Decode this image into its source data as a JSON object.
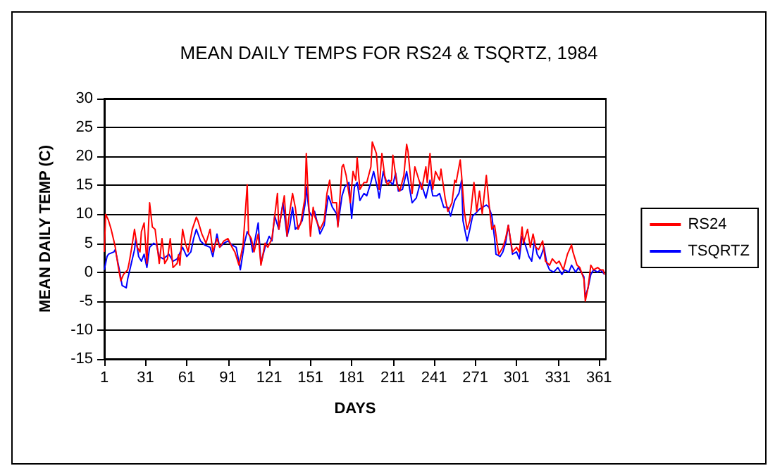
{
  "chart_data": {
    "type": "line",
    "title": "MEAN DAILY TEMPS FOR RS24 & TSQRTZ, 1984",
    "xlabel": "DAYS",
    "ylabel": "MEAN DAILY TEMP (C)",
    "xlim": [
      1,
      366
    ],
    "xticks": [
      1,
      31,
      61,
      91,
      121,
      151,
      181,
      211,
      241,
      271,
      301,
      331,
      361
    ],
    "ylim": [
      -15,
      30
    ],
    "yticks": [
      -15,
      -10,
      -5,
      0,
      5,
      10,
      15,
      20,
      25,
      30
    ],
    "grid": "y",
    "legend": "right",
    "marker": "none",
    "line_style": "solid",
    "series": [
      {
        "name": "RS24",
        "color": "#ff0000",
        "x": [
          1,
          2,
          4,
          6,
          8,
          9,
          11,
          13,
          15,
          18,
          19,
          21,
          23,
          25,
          27,
          28,
          30,
          32,
          33,
          34,
          36,
          38,
          41,
          43,
          45,
          47,
          49,
          51,
          54,
          55,
          56,
          58,
          60,
          62,
          65,
          68,
          69,
          72,
          75,
          78,
          80,
          83,
          85,
          88,
          91,
          94,
          96,
          99,
          102,
          104,
          105,
          106,
          108,
          110,
          113,
          115,
          118,
          120,
          123,
          125,
          127,
          128,
          132,
          134,
          135,
          138,
          140,
          142,
          144,
          147,
          148,
          149,
          151,
          153,
          154,
          158,
          161,
          163,
          165,
          167,
          170,
          171,
          174,
          175,
          177,
          180,
          182,
          184,
          185,
          187,
          190,
          192,
          195,
          196,
          199,
          201,
          203,
          205,
          207,
          210,
          211,
          214,
          216,
          219,
          221,
          222,
          225,
          227,
          230,
          232,
          235,
          236,
          238,
          240,
          242,
          245,
          246,
          249,
          251,
          254,
          256,
          257,
          260,
          261,
          263,
          265,
          267,
          270,
          272,
          274,
          276,
          279,
          281,
          283,
          285,
          288,
          291,
          293,
          295,
          298,
          301,
          303,
          305,
          306,
          309,
          311,
          313,
          315,
          317,
          320,
          322,
          325,
          327,
          330,
          332,
          335,
          338,
          341,
          342,
          345,
          347,
          350,
          351,
          353,
          355,
          357,
          360,
          362,
          364,
          365
        ],
        "values": [
          3.5,
          10,
          9,
          7.4,
          5.4,
          4.3,
          1.2,
          -1.5,
          -0.4,
          0.4,
          1.5,
          4.3,
          7.4,
          4.3,
          3.5,
          7,
          8.5,
          1.5,
          7,
          12,
          7.8,
          7.4,
          1.5,
          5.8,
          1.5,
          2.3,
          5.8,
          0.8,
          1.5,
          3,
          1.2,
          7.4,
          5,
          3.5,
          7.4,
          9.5,
          9,
          6.6,
          5,
          7.4,
          3.5,
          5.8,
          4.3,
          5.4,
          5.8,
          4.3,
          3.5,
          1.2,
          4.7,
          11.6,
          15.1,
          6.6,
          5.8,
          3.5,
          6.6,
          1.2,
          5,
          4.3,
          5.8,
          9.7,
          13.6,
          7.4,
          13.2,
          6.2,
          8.9,
          13.6,
          11.2,
          7.4,
          8.5,
          12.8,
          20.5,
          15.1,
          6.2,
          11.2,
          9.7,
          7.4,
          8.9,
          13.6,
          15.9,
          12,
          12,
          7.8,
          18.2,
          18.6,
          16.7,
          12,
          17.4,
          15.9,
          19.8,
          14.3,
          15.5,
          15.5,
          18.2,
          22.5,
          20.5,
          14.3,
          20.5,
          16.7,
          15.1,
          15.9,
          20.2,
          15.1,
          14,
          16.7,
          22.1,
          20.9,
          13.6,
          18.2,
          15.9,
          14.3,
          18.2,
          15.5,
          20.5,
          14.3,
          17.4,
          15.9,
          17.8,
          12.8,
          10.5,
          12,
          15.9,
          15.5,
          19.4,
          16.7,
          10.5,
          7.4,
          8.9,
          15.5,
          10.5,
          14,
          10.1,
          16.7,
          11.6,
          7.4,
          8.1,
          3.1,
          4.3,
          5.8,
          8.1,
          3.5,
          4.3,
          3.5,
          7.8,
          5,
          7.4,
          4.3,
          6.6,
          4.3,
          3.9,
          5.4,
          1.9,
          1.2,
          2.3,
          1.5,
          1.9,
          0.4,
          3.1,
          4.7,
          3.5,
          1.2,
          0.8,
          -1.2,
          -5,
          -2.7,
          1.2,
          0.4,
          0.8,
          0.4,
          0.4,
          -0.4
        ]
      },
      {
        "name": "TSQRTZ",
        "color": "#0000ff",
        "x": [
          1,
          3,
          4,
          8,
          9,
          12,
          14,
          17,
          18,
          20,
          23,
          24,
          26,
          28,
          30,
          32,
          34,
          37,
          39,
          41,
          44,
          46,
          48,
          51,
          54,
          58,
          61,
          64,
          66,
          68,
          71,
          74,
          78,
          80,
          83,
          85,
          88,
          91,
          94,
          97,
          100,
          103,
          105,
          107,
          109,
          113,
          115,
          118,
          121,
          123,
          125,
          128,
          131,
          134,
          136,
          138,
          140,
          143,
          145,
          147,
          148,
          150,
          152,
          154,
          158,
          161,
          164,
          167,
          170,
          171,
          174,
          176,
          179,
          181,
          183,
          185,
          187,
          190,
          192,
          195,
          197,
          200,
          201,
          204,
          206,
          208,
          211,
          213,
          215,
          218,
          221,
          223,
          225,
          228,
          231,
          233,
          235,
          238,
          240,
          243,
          245,
          248,
          251,
          253,
          256,
          259,
          261,
          262,
          265,
          267,
          269,
          271,
          274,
          276,
          279,
          281,
          283,
          285,
          286,
          289,
          291,
          293,
          295,
          298,
          301,
          303,
          305,
          307,
          310,
          312,
          314,
          316,
          318,
          321,
          323,
          325,
          328,
          331,
          334,
          336,
          339,
          341,
          344,
          346,
          350,
          351,
          353,
          355,
          357,
          360,
          362,
          365
        ],
        "values": [
          0.4,
          2.7,
          3.1,
          3.5,
          3.9,
          0.4,
          -2.3,
          -2.7,
          -1.2,
          0.8,
          3.9,
          5.8,
          2.7,
          1.9,
          3.1,
          0.8,
          4.3,
          5,
          4.7,
          2.7,
          2.3,
          2.7,
          3.1,
          1.9,
          2.3,
          4.3,
          2.7,
          3.5,
          5.8,
          7.4,
          5.4,
          4.7,
          4.3,
          2.7,
          6.6,
          4.3,
          5,
          5.4,
          4.7,
          4.3,
          0.4,
          5,
          7,
          6.2,
          3.5,
          8.5,
          1.5,
          4.3,
          6.2,
          5.4,
          9.7,
          7.4,
          12,
          6.2,
          8.1,
          11.2,
          7.4,
          8.1,
          8.9,
          11.6,
          14.7,
          10.5,
          9.7,
          10.5,
          6.6,
          8.1,
          13.2,
          11.2,
          10.1,
          8.1,
          13.2,
          14.7,
          15.5,
          9.3,
          14.7,
          15.5,
          12.4,
          13.6,
          13.2,
          15.5,
          17.4,
          14.3,
          12.8,
          17.4,
          15.5,
          15.9,
          15.1,
          17.1,
          14,
          14.3,
          17.4,
          14.7,
          12,
          12.8,
          15.5,
          14.3,
          12.8,
          15.9,
          13.2,
          13.2,
          13.6,
          11.2,
          11.2,
          9.7,
          12.4,
          13.6,
          15.9,
          8.9,
          5.4,
          7.4,
          9.7,
          10.1,
          10.9,
          11.2,
          11.6,
          11.2,
          9.7,
          5.8,
          3.1,
          2.7,
          3.5,
          5,
          8.1,
          3.1,
          3.5,
          2.3,
          6.2,
          5,
          2.7,
          1.9,
          5.4,
          3.1,
          2.3,
          4.3,
          1.5,
          0.4,
          0,
          0.8,
          -0.4,
          0.4,
          0,
          1.2,
          0,
          0.8,
          -0.8,
          -4.3,
          -2.7,
          -0.4,
          0.4,
          0,
          0.4,
          -0.4
        ]
      }
    ]
  }
}
